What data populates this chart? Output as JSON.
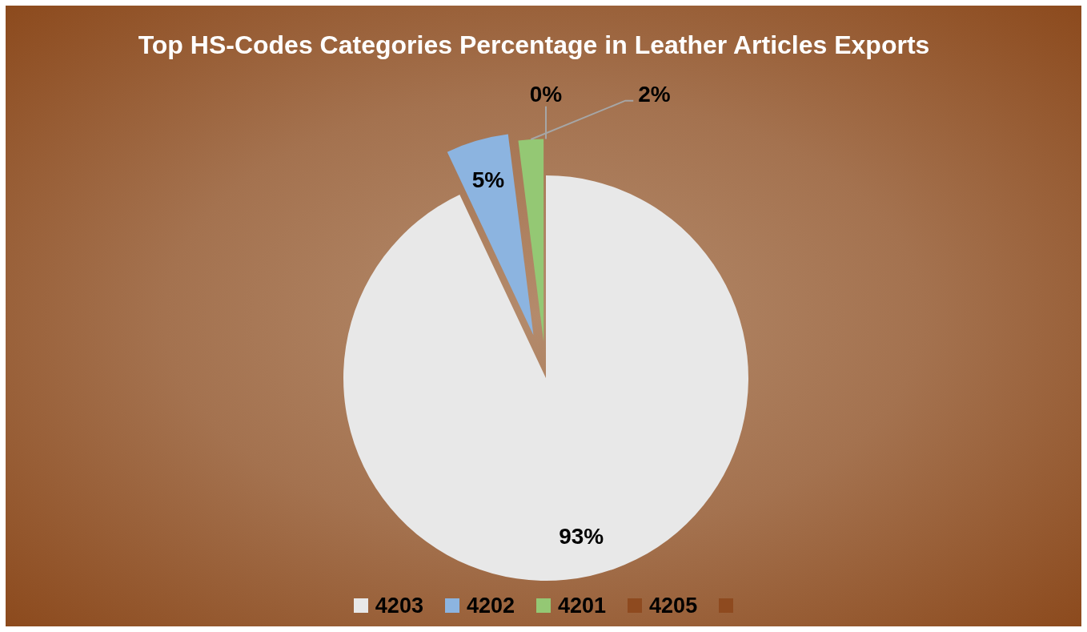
{
  "chart_data": {
    "type": "pie",
    "title": "Top HS-Codes Categories Percentage in Leather Articles Exports",
    "categories": [
      "4203",
      "4202",
      "4201",
      "4205",
      null
    ],
    "values": [
      93,
      5,
      2,
      0,
      null
    ],
    "colors": [
      "#e8e8e8",
      "#8cb4e0",
      "#94c874",
      "#8e4a1f",
      "#8e4a1f"
    ],
    "value_labels": [
      "93%",
      "5%",
      "2%",
      "0%",
      null
    ],
    "legend": "bottom"
  }
}
